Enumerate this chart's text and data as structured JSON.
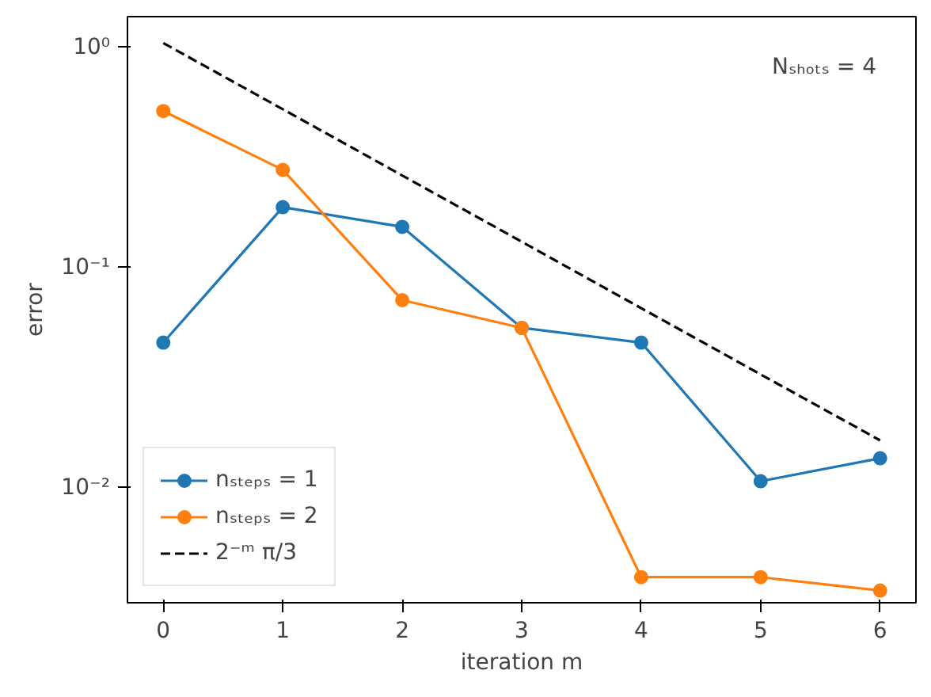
{
  "chart_data": {
    "type": "line",
    "xlabel": "iteration m",
    "ylabel": "error",
    "log": "y",
    "grid": false,
    "legend": "bottom left",
    "x": [
      0,
      1,
      2,
      3,
      4,
      5,
      6
    ],
    "xlim": [
      -0.3,
      6.3
    ],
    "xticks": [
      0,
      1,
      2,
      3,
      4,
      5,
      6
    ],
    "ylim": [
      0.003,
      1.38
    ],
    "yticks": [
      {
        "value": 1,
        "label": "10⁰"
      },
      {
        "value": 0.1,
        "label": "10⁻¹"
      },
      {
        "value": 0.01,
        "label": "10⁻²"
      }
    ],
    "annotations": [
      "Nₛₕₒₜₛ = 4"
    ],
    "series": [
      {
        "name": "nₛₜₑₚₛ = 1",
        "color": "#1f77b4",
        "marker": "circle",
        "line_style": "solid",
        "values": [
          0.0456,
          0.188,
          0.153,
          0.0532,
          0.0456,
          0.0107,
          0.0136
        ]
      },
      {
        "name": "nₛₜₑₚₛ = 2",
        "color": "#ff7f0e",
        "marker": "circle",
        "line_style": "solid",
        "values": [
          0.514,
          0.278,
          0.0711,
          0.0532,
          0.00392,
          0.00392,
          0.00341
        ]
      },
      {
        "name": "2⁻ᵐ π/3",
        "color": "#000000",
        "marker": "none",
        "line_style": "dashed",
        "values": [
          1.047,
          0.524,
          0.262,
          0.131,
          0.0654,
          0.0327,
          0.0164
        ]
      }
    ]
  }
}
